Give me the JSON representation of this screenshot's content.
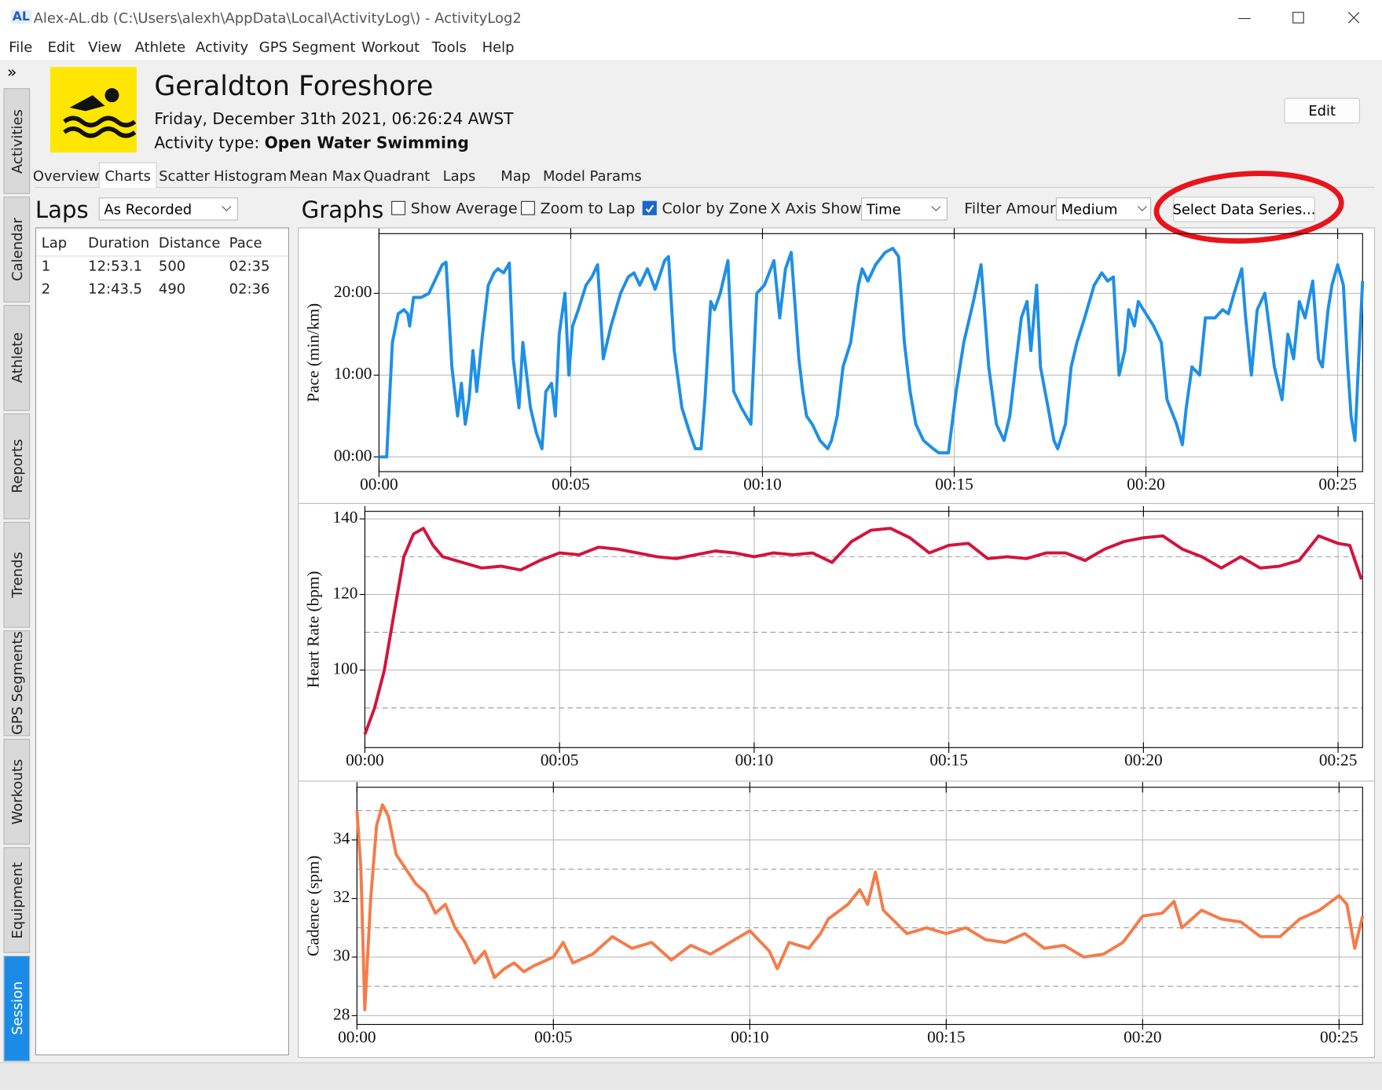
{
  "window": {
    "icon_label": "AL",
    "title": "Alex-AL.db (C:\\Users\\alexh\\AppData\\Local\\ActivityLog\\) - ActivityLog2"
  },
  "menu": [
    "File",
    "Edit",
    "View",
    "Athlete",
    "Activity",
    "GPS Segment",
    "Workout",
    "Tools",
    "Help"
  ],
  "sidebar": {
    "expand": "»",
    "tabs": [
      "Activities",
      "Calendar",
      "Athlete",
      "Reports",
      "Trends",
      "GPS Segments",
      "Workouts",
      "Equipment",
      "Session"
    ],
    "active": "Session"
  },
  "header": {
    "title": "Geraldton Foreshore",
    "date": "Friday, December 31th 2021, 06:26:24 AWST",
    "activity_type_label": "Activity type:",
    "activity_type": "Open Water Swimming",
    "edit_button": "Edit"
  },
  "tabs": {
    "items": [
      "Overview",
      "Charts",
      "Scatter",
      "Histogram",
      "Mean Max",
      "Quadrant",
      "Laps",
      "Map",
      "Model Params"
    ],
    "active": "Charts"
  },
  "laps": {
    "title": "Laps",
    "mode": "As Recorded",
    "columns": [
      "Lap",
      "Duration",
      "Distance",
      "Pace"
    ],
    "rows": [
      [
        1,
        "12:53.1",
        500,
        "02:35"
      ],
      [
        2,
        "12:43.5",
        490,
        "02:36"
      ]
    ]
  },
  "graphs": {
    "title": "Graphs",
    "options": [
      {
        "label": "Show Average",
        "checked": false
      },
      {
        "label": "Zoom to Lap",
        "checked": false
      },
      {
        "label": "Color by Zone",
        "checked": true
      }
    ],
    "x_axis_label": "X Axis Shows:",
    "x_axis_value": "Time",
    "filter_label": "Filter Amount:",
    "filter_value": "Medium",
    "select_button": "Select Data Series..."
  },
  "chart_data": [
    {
      "type": "line",
      "ylabel": "Pace (min/km)",
      "color": "#1e8fe6",
      "grid": true,
      "xlim": [
        0,
        25.65
      ],
      "xticks": [
        {
          "value": 0,
          "label": "00:00"
        },
        {
          "value": 5,
          "label": "00:05"
        },
        {
          "value": 10,
          "label": "00:10"
        },
        {
          "value": 15,
          "label": "00:15"
        },
        {
          "value": 20,
          "label": "00:20"
        },
        {
          "value": 25,
          "label": "00:25"
        }
      ],
      "ylim": [
        -1.8,
        27.3
      ],
      "yticks": [
        {
          "value": 0,
          "label": "00:00"
        },
        {
          "value": 10,
          "label": "10:00"
        },
        {
          "value": 20,
          "label": "20:00"
        }
      ],
      "x": [
        0,
        0.2,
        0.35,
        0.5,
        0.65,
        0.75,
        0.8,
        0.9,
        1.1,
        1.3,
        1.5,
        1.65,
        1.75,
        1.9,
        2.05,
        2.15,
        2.25,
        2.35,
        2.45,
        2.55,
        2.7,
        2.85,
        3.0,
        3.1,
        3.25,
        3.4,
        3.5,
        3.65,
        3.75,
        3.95,
        4.1,
        4.25,
        4.35,
        4.5,
        4.6,
        4.7,
        4.85,
        4.95,
        5.05,
        5.2,
        5.4,
        5.55,
        5.7,
        5.85,
        6.05,
        6.3,
        6.5,
        6.65,
        6.8,
        7.0,
        7.2,
        7.45,
        7.55,
        7.7,
        7.9,
        8.1,
        8.25,
        8.4,
        8.5,
        8.65,
        8.75,
        8.9,
        9.1,
        9.25,
        9.45,
        9.7,
        9.85,
        10.05,
        10.3,
        10.45,
        10.6,
        10.75,
        10.95,
        11.05,
        11.15,
        11.3,
        11.5,
        11.7,
        11.8,
        11.95,
        12.1,
        12.3,
        12.5,
        12.6,
        12.75,
        12.95,
        13.2,
        13.4,
        13.55,
        13.7,
        13.85,
        14.0,
        14.2,
        14.45,
        14.6,
        14.85,
        15.05,
        15.25,
        15.5,
        15.7,
        15.9,
        16.1,
        16.3,
        16.45,
        16.6,
        16.75,
        16.9,
        17.0,
        17.15,
        17.25,
        17.45,
        17.6,
        17.7,
        17.9,
        18.05,
        18.2,
        18.4,
        18.65,
        18.85,
        19.0,
        19.15,
        19.3,
        19.45,
        19.55,
        19.7,
        19.8,
        20.0,
        20.2,
        20.4,
        20.55,
        20.8,
        20.95,
        21.05,
        21.2,
        21.4,
        21.55,
        21.8,
        22.0,
        22.15,
        22.3,
        22.5,
        22.6,
        22.75,
        22.9,
        23.1,
        23.35,
        23.55,
        23.7,
        23.85,
        24.0,
        24.15,
        24.35,
        24.5,
        24.6,
        24.75,
        24.85,
        25.0,
        25.15,
        25.25,
        25.35,
        25.45,
        25.55,
        25.65
      ],
      "values": [
        0,
        0,
        14,
        17.5,
        18,
        17.5,
        16,
        19.5,
        19.5,
        20,
        22,
        23.5,
        23.8,
        11,
        5,
        9,
        4,
        7,
        13,
        8,
        15,
        21,
        22.5,
        23,
        22.5,
        23.7,
        12,
        6,
        14,
        6,
        3,
        1,
        8,
        9,
        5,
        15,
        20,
        10,
        16,
        18,
        21,
        22,
        23.5,
        12,
        16,
        20,
        22,
        22.5,
        21,
        23,
        20.5,
        24,
        24.5,
        13,
        6,
        3,
        1,
        1,
        7,
        19,
        18,
        20,
        24,
        8,
        6,
        4,
        20,
        21,
        24,
        17,
        23,
        25,
        12,
        8,
        5,
        4,
        2,
        1,
        2,
        5,
        11,
        14,
        21,
        23,
        21.5,
        23.5,
        25,
        25.5,
        24.5,
        14,
        8,
        4,
        2,
        1,
        0.5,
        0.5,
        8,
        14,
        19,
        23.5,
        11,
        4,
        2,
        5,
        11,
        17,
        19,
        13,
        21,
        11,
        6,
        2,
        1,
        4,
        11,
        14,
        17,
        21,
        22.5,
        21.5,
        22,
        10,
        13,
        18,
        16,
        19,
        17.5,
        16,
        14,
        7,
        4,
        1.5,
        6,
        11,
        10,
        17,
        17,
        18,
        17.5,
        20,
        23,
        17,
        10,
        18,
        20,
        11,
        7,
        15,
        12,
        19,
        17,
        21.5,
        12,
        11,
        18,
        21,
        23.5,
        21,
        12,
        5,
        2,
        12,
        21.5
      ]
    },
    {
      "type": "line",
      "ylabel": "Heart Rate (bpm)",
      "color": "#d2143c",
      "grid": true,
      "xlim": [
        0,
        25.63
      ],
      "xticks": [
        {
          "value": 0,
          "label": "00:00"
        },
        {
          "value": 5,
          "label": "00:05"
        },
        {
          "value": 10,
          "label": "00:10"
        },
        {
          "value": 15,
          "label": "00:15"
        },
        {
          "value": 20,
          "label": "00:20"
        },
        {
          "value": 25,
          "label": "00:25"
        }
      ],
      "ylim": [
        79.5,
        142
      ],
      "yticks": [
        100,
        120,
        140
      ],
      "minor_yticks": [
        90,
        110,
        130
      ],
      "x": [
        0,
        0.25,
        0.5,
        0.75,
        1,
        1.25,
        1.5,
        1.75,
        2,
        2.5,
        3,
        3.5,
        4,
        4.5,
        5,
        5.5,
        6,
        6.5,
        7,
        7.5,
        8,
        8.5,
        9,
        9.5,
        10,
        10.5,
        11,
        11.5,
        12,
        12.5,
        13,
        13.5,
        14,
        14.5,
        15,
        15.5,
        16,
        16.5,
        17,
        17.5,
        18,
        18.5,
        19,
        19.5,
        20,
        20.5,
        21,
        21.5,
        22,
        22.5,
        23,
        23.5,
        24,
        24.5,
        25,
        25.3,
        25.6
      ],
      "values": [
        83,
        90,
        100,
        115,
        130,
        136,
        137.5,
        133,
        130,
        128.5,
        127,
        127.5,
        126.5,
        129,
        131,
        130.5,
        132.5,
        132,
        131,
        130,
        129.5,
        130.5,
        131.5,
        131,
        130,
        131,
        130.5,
        131,
        128.5,
        134,
        137,
        137.5,
        135,
        131,
        133,
        133.5,
        129.5,
        130,
        129.5,
        131,
        131,
        129,
        132,
        134,
        135,
        135.5,
        132,
        130,
        127,
        130,
        127,
        127.5,
        129,
        135.5,
        133.5,
        133,
        124
      ]
    },
    {
      "type": "line",
      "ylabel": "Cadence (spm)",
      "color": "#f47c4a",
      "grid": true,
      "xlim": [
        0,
        25.6
      ],
      "xticks": [
        {
          "value": 0,
          "label": "00:00"
        },
        {
          "value": 5,
          "label": "00:05"
        },
        {
          "value": 10,
          "label": "00:10"
        },
        {
          "value": 15,
          "label": "00:15"
        },
        {
          "value": 20,
          "label": "00:20"
        },
        {
          "value": 25,
          "label": "00:25"
        }
      ],
      "ylim": [
        27.7,
        35.8
      ],
      "yticks": [
        28,
        30,
        32,
        34
      ],
      "minor_yticks": [
        29,
        31,
        33,
        35
      ],
      "x": [
        0,
        0.1,
        0.2,
        0.35,
        0.5,
        0.65,
        0.8,
        1.0,
        1.25,
        1.5,
        1.75,
        2,
        2.25,
        2.5,
        2.75,
        3,
        3.25,
        3.5,
        3.75,
        4,
        4.25,
        4.5,
        5,
        5.25,
        5.5,
        6,
        6.5,
        7,
        7.5,
        8,
        8.5,
        9,
        9.5,
        10,
        10.5,
        10.7,
        11,
        11.5,
        11.8,
        12,
        12.5,
        12.8,
        13,
        13.2,
        13.4,
        14,
        14.5,
        15,
        15.5,
        16,
        16.5,
        17,
        17.5,
        18,
        18.5,
        19,
        19.5,
        20,
        20.5,
        20.8,
        21,
        21.5,
        22,
        22.5,
        23,
        23.5,
        24,
        24.5,
        25,
        25.2,
        25.4,
        25.6
      ],
      "values": [
        35,
        33,
        28.2,
        32,
        34.5,
        35.2,
        34.8,
        33.5,
        33,
        32.5,
        32.2,
        31.5,
        31.8,
        31,
        30.5,
        29.8,
        30.2,
        29.3,
        29.6,
        29.8,
        29.5,
        29.7,
        30,
        30.5,
        29.8,
        30.1,
        30.7,
        30.3,
        30.5,
        29.9,
        30.4,
        30.1,
        30.5,
        30.9,
        30.2,
        29.6,
        30.5,
        30.3,
        30.8,
        31.3,
        31.8,
        32.3,
        31.8,
        32.9,
        31.6,
        30.8,
        31,
        30.8,
        31,
        30.6,
        30.5,
        30.8,
        30.3,
        30.4,
        30,
        30.1,
        30.5,
        31.4,
        31.5,
        31.9,
        31,
        31.6,
        31.3,
        31.2,
        30.7,
        30.7,
        31.3,
        31.6,
        32.1,
        31.8,
        30.3,
        31.4
      ]
    }
  ]
}
